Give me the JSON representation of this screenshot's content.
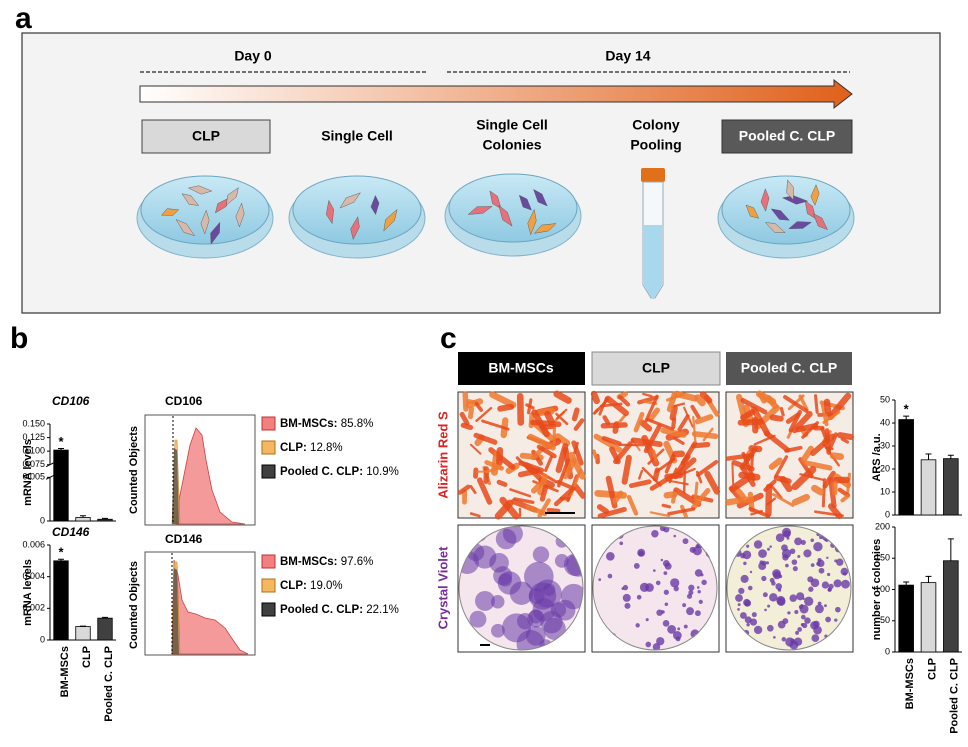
{
  "panel_a": {
    "label": "a",
    "day_start": "Day 0",
    "day_end": "Day 14",
    "steps": [
      [
        "CLP"
      ],
      [
        "Single Cell"
      ],
      [
        "Single Cell",
        "Colonies"
      ],
      [
        "Colony",
        "Pooling"
      ],
      [
        "Pooled C. CLP"
      ]
    ]
  },
  "panel_b": {
    "label": "b",
    "histograms": [
      {
        "title": "CD106",
        "ylabel": "Counted Objects",
        "legend": [
          {
            "name": "BM-MSCs:",
            "value": "85.8%",
            "color": "#f28080"
          },
          {
            "name": "CLP:",
            "value": "12.8%",
            "color": "#f5b860"
          },
          {
            "name": "Pooled C. CLP:",
            "value": "10.9%",
            "color": "#404040"
          }
        ]
      },
      {
        "title": "CD146",
        "ylabel": "Counted Objects",
        "legend": [
          {
            "name": "BM-MSCs:",
            "value": "97.6%",
            "color": "#f28080"
          },
          {
            "name": "CLP:",
            "value": "19.0%",
            "color": "#f5b860"
          },
          {
            "name": "Pooled C. CLP:",
            "value": "22.1%",
            "color": "#404040"
          }
        ]
      }
    ]
  },
  "panel_c": {
    "label": "c",
    "headers": [
      "BM-MSCs",
      "CLP",
      "Pooled C. CLP"
    ],
    "row_labels": [
      "Alizarin Red S",
      "Crystal Violet"
    ]
  },
  "chart_data": [
    {
      "type": "bar",
      "title": "CD106",
      "ylabel": "mRNA levels",
      "values": [
        0.102,
        0.0004,
        0.0002
      ],
      "errors": [
        0.003,
        0.0002,
        0.0001
      ],
      "colors": [
        "#000000",
        "#d9d9d9",
        "#404040"
      ],
      "ylim": [
        0,
        0.15
      ],
      "ybreak": [
        0.005,
        0.075
      ],
      "yticks": [
        0,
        0.005,
        0.075,
        {
          "value": 0.1,
          "label": "0.100"
        },
        0.125,
        {
          "value": 0.15,
          "label": "0.150"
        }
      ],
      "annotation": "*"
    },
    {
      "type": "bar",
      "title": "CD146",
      "ylabel": "mRNA levels",
      "categories": [
        "BM-MSCs",
        "CLP",
        "Pooled C. CLP"
      ],
      "values": [
        0.005,
        0.00085,
        0.00138
      ],
      "errors": [
        0.0001,
        3e-05,
        5e-05
      ],
      "colors": [
        "#000000",
        "#d9d9d9",
        "#404040"
      ],
      "ylim": [
        0,
        0.006
      ],
      "yticks": [
        0,
        0.002,
        0.004,
        0.006
      ],
      "annotation": "*"
    },
    {
      "type": "bar",
      "ylabel": "ARS /a.u.",
      "values": [
        41.5,
        24,
        24.5
      ],
      "errors": [
        1.5,
        2.5,
        1.5
      ],
      "colors": [
        "#000000",
        "#d9d9d9",
        "#404040"
      ],
      "ylim": [
        0,
        50
      ],
      "yticks": [
        0,
        10,
        20,
        30,
        40,
        50
      ],
      "annotation": "*"
    },
    {
      "type": "bar",
      "ylabel": "number of colonies",
      "categories": [
        "BM-MSCs",
        "CLP",
        "Pooled C. CLP"
      ],
      "values": [
        107,
        111,
        146
      ],
      "errors": [
        5,
        10,
        35
      ],
      "colors": [
        "#000000",
        "#d9d9d9",
        "#404040"
      ],
      "ylim": [
        0,
        200
      ],
      "yticks": [
        0,
        50,
        100,
        150,
        200
      ]
    }
  ]
}
